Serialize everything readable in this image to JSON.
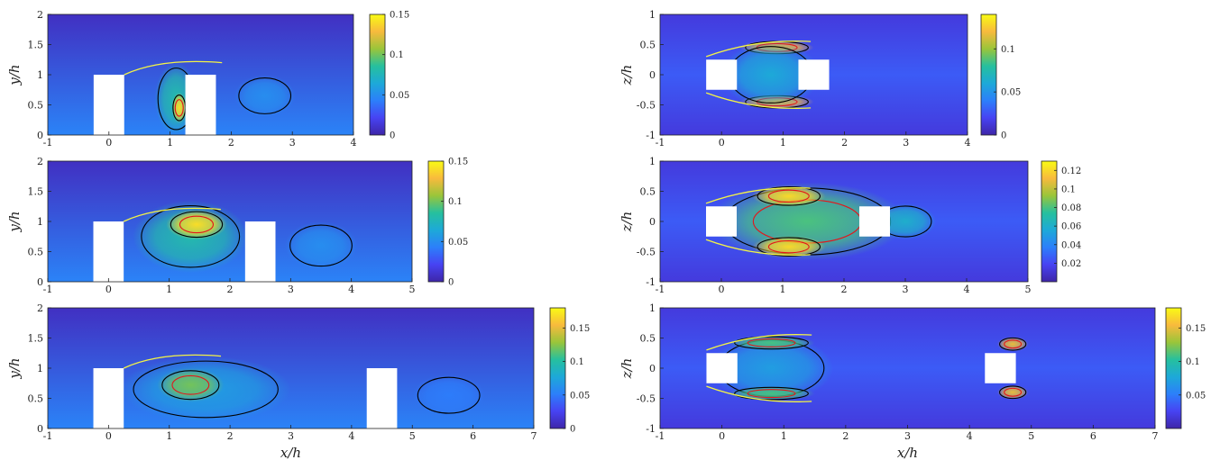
{
  "figure": {
    "description": "Six contour plots of a flow field between two rectangular obstacles; left column side view (x/h vs y/h), right column top view (x/h vs z/h).",
    "colormap": [
      "#3e26a8",
      "#4743f3",
      "#2c7ffa",
      "#1da9d8",
      "#26c09e",
      "#9ac53a",
      "#f8ba3d",
      "#f9fb14"
    ],
    "contour_colors": {
      "black": "#000000",
      "red": "#e3161b",
      "yellow": "#f3f346"
    }
  },
  "chart_data": [
    {
      "id": "left-top",
      "type": "heatmap",
      "view": "side",
      "xlabel": "",
      "ylabel": "y/h",
      "xlim": [
        -1,
        4
      ],
      "ylim": [
        0,
        2
      ],
      "xticks": [
        "-1",
        "0",
        "1",
        "2",
        "3",
        "4"
      ],
      "yticks": [
        "0",
        "0.5",
        "1",
        "1.5",
        "2"
      ],
      "colorbar": {
        "min": 0,
        "max": 0.15,
        "ticks": [
          "0",
          "0.05",
          "0.1",
          "0.15"
        ]
      },
      "obstacles": [
        {
          "x0": -0.25,
          "x1": 0.25,
          "y0": 0,
          "y1": 1
        },
        {
          "x0": 1.25,
          "x1": 1.75,
          "y0": 0,
          "y1": 1
        }
      ],
      "blobs": [
        {
          "cx": 1.1,
          "cy": 0.6,
          "rx": 0.35,
          "ry": 0.6,
          "v": 0.08
        },
        {
          "cx": 1.15,
          "cy": 0.45,
          "rx": 0.12,
          "ry": 0.25,
          "v": 0.14
        },
        {
          "cx": 2.55,
          "cy": 0.65,
          "rx": 0.5,
          "ry": 0.35,
          "v": 0.05
        }
      ]
    },
    {
      "id": "left-middle",
      "type": "heatmap",
      "view": "side",
      "xlabel": "",
      "ylabel": "y/h",
      "xlim": [
        -1,
        5
      ],
      "ylim": [
        0,
        2
      ],
      "xticks": [
        "-1",
        "0",
        "1",
        "2",
        "3",
        "4",
        "5"
      ],
      "yticks": [
        "0",
        "0.5",
        "1",
        "1.5",
        "2"
      ],
      "colorbar": {
        "min": 0,
        "max": 0.15,
        "ticks": [
          "0",
          "0.05",
          "0.1",
          "0.15"
        ]
      },
      "obstacles": [
        {
          "x0": -0.25,
          "x1": 0.25,
          "y0": 0,
          "y1": 1
        },
        {
          "x0": 2.25,
          "x1": 2.75,
          "y0": 0,
          "y1": 1
        }
      ],
      "blobs": [
        {
          "cx": 1.35,
          "cy": 0.75,
          "rx": 0.95,
          "ry": 0.6,
          "v": 0.08
        },
        {
          "cx": 1.45,
          "cy": 0.95,
          "rx": 0.5,
          "ry": 0.25,
          "v": 0.14
        },
        {
          "cx": 3.5,
          "cy": 0.6,
          "rx": 0.6,
          "ry": 0.4,
          "v": 0.05
        }
      ]
    },
    {
      "id": "left-bottom",
      "type": "heatmap",
      "view": "side",
      "xlabel": "x/h",
      "ylabel": "y/h",
      "xlim": [
        -1,
        7
      ],
      "ylim": [
        0,
        2
      ],
      "xticks": [
        "-1",
        "0",
        "1",
        "2",
        "3",
        "4",
        "5",
        "6",
        "7"
      ],
      "yticks": [
        "0",
        "0.5",
        "1",
        "1.5",
        "2"
      ],
      "colorbar": {
        "min": 0,
        "max": 0.18,
        "ticks": [
          "0",
          "0.05",
          "0.1",
          "0.15"
        ]
      },
      "obstacles": [
        {
          "x0": -0.25,
          "x1": 0.25,
          "y0": 0,
          "y1": 1
        },
        {
          "x0": 4.25,
          "x1": 4.75,
          "y0": 0,
          "y1": 1
        }
      ],
      "blobs": [
        {
          "cx": 1.6,
          "cy": 0.65,
          "rx": 1.4,
          "ry": 0.55,
          "v": 0.07
        },
        {
          "cx": 1.35,
          "cy": 0.72,
          "rx": 0.55,
          "ry": 0.28,
          "v": 0.12
        },
        {
          "cx": 5.6,
          "cy": 0.55,
          "rx": 0.6,
          "ry": 0.35,
          "v": 0.05
        }
      ]
    },
    {
      "id": "right-top",
      "type": "heatmap",
      "view": "top",
      "xlabel": "",
      "ylabel": "z/h",
      "xlim": [
        -1,
        4
      ],
      "ylim": [
        -1,
        1
      ],
      "xticks": [
        "-1",
        "0",
        "1",
        "2",
        "3",
        "4"
      ],
      "yticks": [
        "-1",
        "-0.5",
        "0",
        "0.5",
        "1"
      ],
      "colorbar": {
        "min": 0,
        "max": 0.14,
        "ticks": [
          "0",
          "0.05",
          "0.1"
        ]
      },
      "obstacles": [
        {
          "x0": -0.25,
          "x1": 0.25,
          "y0": -0.25,
          "y1": 0.25
        },
        {
          "x0": 1.25,
          "x1": 1.75,
          "y0": -0.25,
          "y1": 0.25
        }
      ],
      "blobs": [
        {
          "cx": 0.9,
          "cy": 0.45,
          "rx": 0.6,
          "ry": 0.12,
          "v": 0.12
        },
        {
          "cx": 0.9,
          "cy": -0.45,
          "rx": 0.6,
          "ry": 0.12,
          "v": 0.12
        },
        {
          "cx": 0.8,
          "cy": 0,
          "rx": 0.8,
          "ry": 0.55,
          "v": 0.06
        }
      ]
    },
    {
      "id": "right-middle",
      "type": "heatmap",
      "view": "top",
      "xlabel": "",
      "ylabel": "z/h",
      "xlim": [
        -1,
        5
      ],
      "ylim": [
        -1,
        1
      ],
      "xticks": [
        "-1",
        "0",
        "1",
        "2",
        "3",
        "4",
        "5"
      ],
      "yticks": [
        "-1",
        "-0.5",
        "0",
        "0.5",
        "1"
      ],
      "colorbar": {
        "min": 0,
        "max": 0.13,
        "ticks": [
          "0.02",
          "0.04",
          "0.06",
          "0.08",
          "0.1",
          "0.12"
        ]
      },
      "obstacles": [
        {
          "x0": -0.25,
          "x1": 0.25,
          "y0": -0.25,
          "y1": 0.25
        },
        {
          "x0": 2.25,
          "x1": 2.75,
          "y0": -0.25,
          "y1": 0.25
        }
      ],
      "blobs": [
        {
          "cx": 1.4,
          "cy": 0,
          "rx": 1.6,
          "ry": 0.65,
          "v": 0.08
        },
        {
          "cx": 1.1,
          "cy": 0.42,
          "rx": 0.6,
          "ry": 0.18,
          "v": 0.12
        },
        {
          "cx": 1.1,
          "cy": -0.42,
          "rx": 0.6,
          "ry": 0.18,
          "v": 0.12
        },
        {
          "cx": 3.0,
          "cy": 0,
          "rx": 0.5,
          "ry": 0.3,
          "v": 0.06
        }
      ]
    },
    {
      "id": "right-bottom",
      "type": "heatmap",
      "view": "top",
      "xlabel": "x/h",
      "ylabel": "z/h",
      "xlim": [
        -1,
        7
      ],
      "ylim": [
        -1,
        1
      ],
      "xticks": [
        "-1",
        "0",
        "1",
        "2",
        "3",
        "4",
        "5",
        "6",
        "7"
      ],
      "yticks": [
        "-1",
        "-0.5",
        "0",
        "0.5",
        "1"
      ],
      "colorbar": {
        "min": 0,
        "max": 0.18,
        "ticks": [
          "0.05",
          "0.1",
          "0.15"
        ]
      },
      "obstacles": [
        {
          "x0": -0.25,
          "x1": 0.25,
          "y0": -0.25,
          "y1": 0.25
        },
        {
          "x0": 4.25,
          "x1": 4.75,
          "y0": -0.25,
          "y1": 0.25
        }
      ],
      "blobs": [
        {
          "cx": 0.8,
          "cy": 0,
          "rx": 1.0,
          "ry": 0.55,
          "v": 0.07
        },
        {
          "cx": 0.8,
          "cy": 0.42,
          "rx": 0.7,
          "ry": 0.12,
          "v": 0.11
        },
        {
          "cx": 0.8,
          "cy": -0.42,
          "rx": 0.7,
          "ry": 0.12,
          "v": 0.11
        },
        {
          "cx": 4.7,
          "cy": 0.4,
          "rx": 0.25,
          "ry": 0.12,
          "v": 0.15
        },
        {
          "cx": 4.7,
          "cy": -0.4,
          "rx": 0.25,
          "ry": 0.12,
          "v": 0.15
        }
      ]
    }
  ]
}
